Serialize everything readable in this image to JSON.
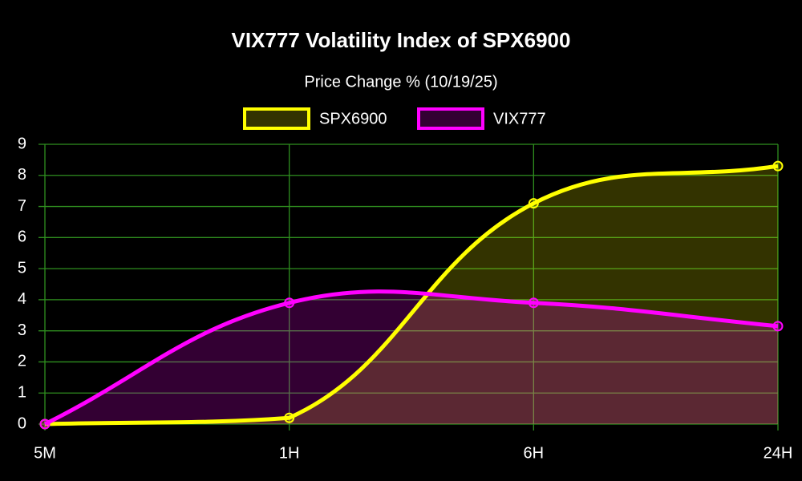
{
  "chart_data": {
    "type": "area",
    "title": "VIX777 Volatility Index of SPX6900",
    "subtitle": "Price Change % (10/19/25)",
    "categories": [
      "5M",
      "1H",
      "6H",
      "24H"
    ],
    "series": [
      {
        "name": "SPX6900",
        "color": "#ffff00",
        "values": [
          0,
          0.2,
          7.1,
          8.3
        ]
      },
      {
        "name": "VIX777",
        "color": "#ff00ff",
        "values": [
          0,
          3.9,
          3.9,
          3.15
        ]
      }
    ],
    "ylim": [
      0,
      9
    ],
    "yticks": [
      0,
      1,
      2,
      3,
      4,
      5,
      6,
      7,
      8,
      9
    ],
    "grid": true,
    "grid_color": "#2f8f1f",
    "legend": "top"
  }
}
